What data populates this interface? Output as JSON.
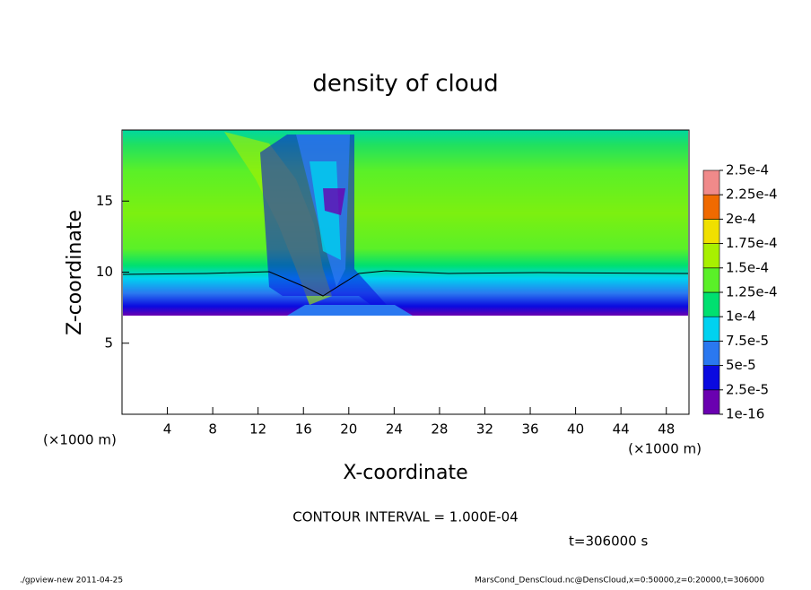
{
  "chart_data": {
    "type": "heatmap",
    "title": "density of cloud",
    "x_label": "X-coordinate",
    "y_label": "Z-coordinate",
    "x_unit_left": "(×1000 m)",
    "x_unit_right": "(×1000 m)",
    "xlim": [
      0,
      50
    ],
    "xticks": [
      4,
      8,
      12,
      16,
      20,
      24,
      28,
      32,
      36,
      40,
      44,
      48
    ],
    "ylim": [
      0,
      20
    ],
    "yticks": [
      5,
      10,
      15
    ],
    "colorbar": {
      "ticks": [
        {
          "value": 1e-16,
          "label": "1e-16"
        },
        {
          "value": 2.5e-05,
          "label": "2.5e-5"
        },
        {
          "value": 5e-05,
          "label": "5e-5"
        },
        {
          "value": 7.5e-05,
          "label": "7.5e-5"
        },
        {
          "value": 0.0001,
          "label": "1e-4"
        },
        {
          "value": 0.000125,
          "label": "1.25e-4"
        },
        {
          "value": 0.00015,
          "label": "1.5e-4"
        },
        {
          "value": 0.000175,
          "label": "1.75e-4"
        },
        {
          "value": 0.0002,
          "label": "2e-4"
        },
        {
          "value": 0.000225,
          "label": "2.25e-4"
        },
        {
          "value": 0.00025,
          "label": "2.5e-4"
        }
      ],
      "colors": [
        "#6a00b0",
        "#0a0ae0",
        "#2a78f0",
        "#00d2f0",
        "#00e070",
        "#5af028",
        "#a8f000",
        "#f0e000",
        "#f06a00",
        "#f08a8a"
      ]
    },
    "contour_interval": "CONTOUR INTERVAL = 1.000E-04",
    "time_label": "t=306000 s",
    "footer_left": "./gpview-new  2011-04-25",
    "footer_right": "MarsCond_DensCloud.nc@DensCloud,x=0:50000,z=0:20000,t=306000"
  }
}
